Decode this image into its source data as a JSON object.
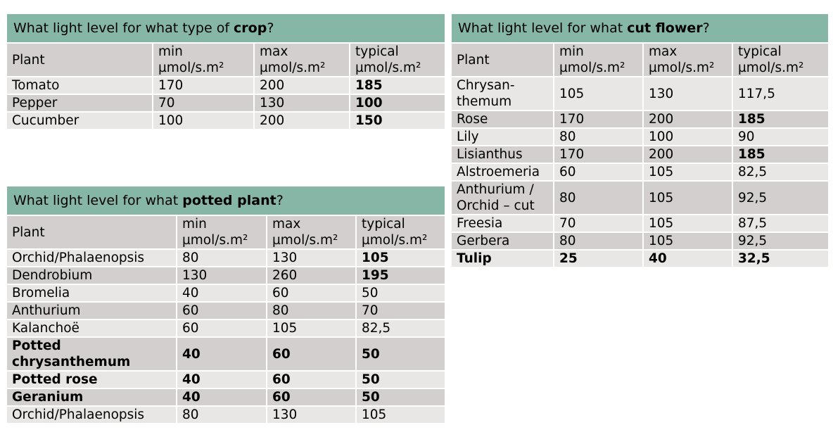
{
  "header_units": "µmol/s.m²",
  "tables": [
    {
      "id": "crop",
      "title_pre": "What light level for what type of ",
      "title_bold": "crop",
      "title_post": "?",
      "headers": [
        "Plant",
        "min",
        "max",
        "typical"
      ],
      "rows": [
        {
          "cells": [
            "Tomato",
            "170",
            "200",
            "185"
          ],
          "typical_bold": true
        },
        {
          "cells": [
            "Pepper",
            "70",
            "130",
            "100"
          ],
          "typical_bold": true
        },
        {
          "cells": [
            "Cucumber",
            "100",
            "200",
            "150"
          ],
          "typical_bold": true
        }
      ]
    },
    {
      "id": "potted",
      "title_pre": "What light level for what ",
      "title_bold": "potted plant",
      "title_post": "?",
      "headers": [
        "Plant",
        "min",
        "max",
        "typical"
      ],
      "rows": [
        {
          "cells": [
            "Orchid/Phalaenopsis",
            "80",
            "130",
            "105"
          ],
          "typical_bold": true
        },
        {
          "cells": [
            "Dendrobium",
            "130",
            "260",
            "195"
          ],
          "typical_bold": true
        },
        {
          "cells": [
            "Bromelia",
            "40",
            "60",
            "50"
          ]
        },
        {
          "cells": [
            "Anthurium",
            "60",
            "80",
            "70"
          ]
        },
        {
          "cells": [
            "Kalanchoë",
            "60",
            "105",
            "82,5"
          ]
        },
        {
          "cells": [
            "Potted\nchrysanthemum",
            "40",
            "60",
            "50"
          ],
          "bold": true,
          "tall": true
        },
        {
          "cells": [
            "Potted rose",
            "40",
            "60",
            "50"
          ],
          "bold": true
        },
        {
          "cells": [
            "Geranium",
            "40",
            "60",
            "50"
          ],
          "bold": true
        },
        {
          "cells": [
            "Orchid/Phalaenopsis",
            "80",
            "130",
            "105"
          ]
        }
      ]
    },
    {
      "id": "cut",
      "title_pre": "What light level for what ",
      "title_bold": "cut flower",
      "title_post": "?",
      "headers": [
        "Plant",
        "min",
        "max",
        "typical"
      ],
      "rows": [
        {
          "cells": [
            "Chrysan-\nthemum",
            "105",
            "130",
            "117,5"
          ],
          "tall": true
        },
        {
          "cells": [
            "Rose",
            "170",
            "200",
            "185"
          ],
          "typical_bold": true
        },
        {
          "cells": [
            "Lily",
            "80",
            "100",
            "90"
          ]
        },
        {
          "cells": [
            "Lisianthus",
            "170",
            "200",
            "185"
          ],
          "typical_bold": true
        },
        {
          "cells": [
            "Alstroemeria",
            "60",
            "105",
            "82,5"
          ]
        },
        {
          "cells": [
            "Anthurium /\nOrchid – cut",
            "80",
            "105",
            "92,5"
          ],
          "tall": true
        },
        {
          "cells": [
            "Freesia",
            "70",
            "105",
            "87,5"
          ]
        },
        {
          "cells": [
            "Gerbera",
            "80",
            "105",
            "92,5"
          ]
        },
        {
          "cells": [
            "Tulip",
            "25",
            "40",
            "32,5"
          ],
          "bold": true
        }
      ]
    }
  ]
}
